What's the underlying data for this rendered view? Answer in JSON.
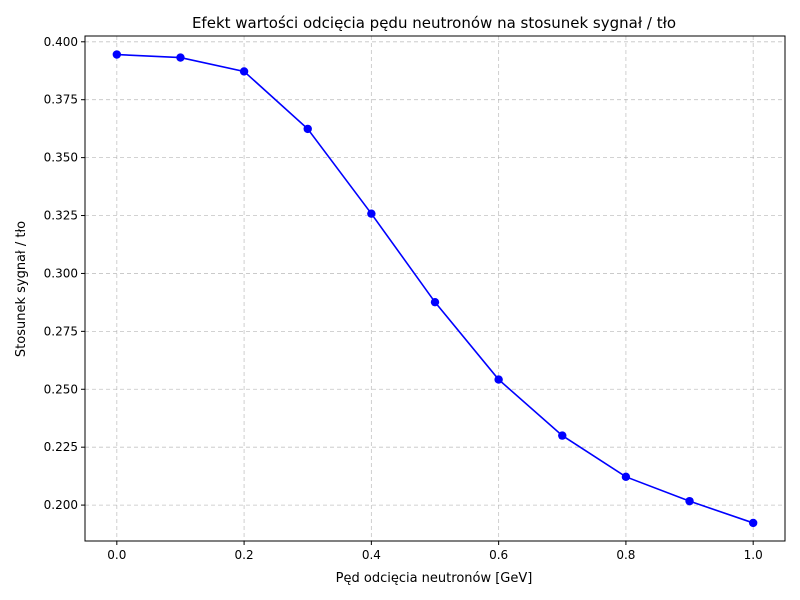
{
  "chart_data": {
    "type": "line",
    "title": "Efekt wartości odcięcia pędu neutronów na stosunek sygnał / tło",
    "xlabel": "Pęd odcięcia neutronów [GeV]",
    "ylabel": "Stosunek sygnał / tło",
    "xlim": [
      -0.05,
      1.05
    ],
    "ylim": [
      0.1845,
      0.4025
    ],
    "x_ticks": [
      0.0,
      0.2,
      0.4,
      0.6,
      0.8,
      1.0
    ],
    "x_tick_labels": [
      "0.0",
      "0.2",
      "0.4",
      "0.6",
      "0.8",
      "1.0"
    ],
    "y_ticks": [
      0.2,
      0.225,
      0.25,
      0.275,
      0.3,
      0.325,
      0.35,
      0.375,
      0.4
    ],
    "y_tick_labels": [
      "0.200",
      "0.225",
      "0.250",
      "0.275",
      "0.300",
      "0.325",
      "0.350",
      "0.375",
      "0.400"
    ],
    "grid": true,
    "series": [
      {
        "color": "#0000ff",
        "marker": "circle",
        "x": [
          0.0,
          0.1,
          0.2,
          0.3,
          0.4,
          0.5,
          0.6,
          0.7,
          0.8,
          0.9,
          1.0
        ],
        "y": [
          0.3945,
          0.3932,
          0.3872,
          0.3624,
          0.3258,
          0.2876,
          0.2542,
          0.23,
          0.2122,
          0.2017,
          0.1923
        ]
      }
    ]
  }
}
